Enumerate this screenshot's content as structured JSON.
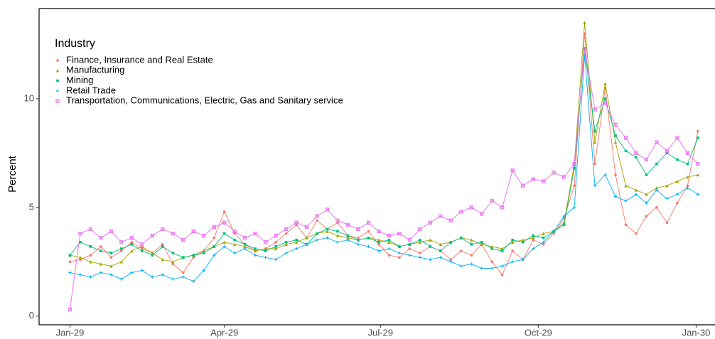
{
  "chart_data": {
    "type": "line",
    "y_label": "Percent",
    "legend_title": "Industry",
    "legend_position": "top-left",
    "x": [
      0,
      6,
      12,
      18,
      24,
      30,
      36,
      42,
      48,
      54,
      60,
      66,
      72,
      78,
      84,
      90,
      96,
      102,
      108,
      114,
      120,
      126,
      132,
      138,
      144,
      150,
      156,
      162,
      168,
      174,
      180,
      186,
      192,
      198,
      204,
      210,
      216,
      222,
      228,
      234,
      240,
      246,
      252,
      258,
      264,
      270,
      276,
      282,
      288,
      294,
      300,
      306,
      312,
      318,
      324,
      330,
      336,
      342,
      348,
      354,
      360,
      366
    ],
    "xlim": [
      -18,
      376
    ],
    "xticks": [
      {
        "value": 0,
        "label": "Jan-29"
      },
      {
        "value": 90,
        "label": "Apr-29"
      },
      {
        "value": 181,
        "label": "Jul-29"
      },
      {
        "value": 273,
        "label": "Oct-29"
      },
      {
        "value": 365,
        "label": "Jan-30"
      }
    ],
    "ylim": [
      -0.4,
      14.15
    ],
    "yticks": [
      0,
      5,
      10
    ],
    "series": [
      {
        "name": "Finance, Insurance and Real Estate",
        "color": "#F8766D",
        "marker": "circle",
        "values": [
          2.5,
          2.6,
          2.8,
          3.2,
          2.7,
          3.0,
          3.4,
          3.1,
          2.9,
          3.3,
          2.4,
          2.0,
          2.7,
          3.0,
          3.6,
          4.8,
          3.8,
          3.3,
          3.0,
          3.1,
          3.4,
          3.8,
          4.2,
          3.6,
          4.4,
          4.0,
          4.3,
          3.7,
          3.6,
          3.9,
          3.3,
          2.8,
          2.7,
          3.1,
          2.9,
          3.2,
          3.0,
          2.6,
          3.0,
          2.8,
          3.3,
          2.5,
          1.9,
          3.0,
          2.6,
          3.5,
          3.3,
          3.8,
          4.5,
          6.0,
          13.0,
          7.0,
          10.5,
          6.5,
          4.2,
          3.8,
          4.6,
          5.0,
          4.3,
          5.2,
          6.0,
          8.5
        ]
      },
      {
        "name": "Manufacturing",
        "color": "#A3A500",
        "marker": "triangle",
        "values": [
          2.8,
          2.7,
          2.5,
          2.4,
          2.3,
          2.5,
          3.0,
          3.2,
          2.9,
          2.6,
          2.5,
          2.7,
          2.8,
          3.0,
          3.2,
          3.4,
          3.3,
          3.2,
          3.0,
          3.1,
          3.1,
          3.3,
          3.4,
          3.6,
          3.8,
          3.9,
          3.7,
          3.6,
          3.5,
          3.6,
          3.5,
          3.4,
          3.2,
          3.3,
          3.4,
          3.5,
          3.3,
          3.4,
          3.6,
          3.5,
          3.3,
          3.2,
          3.1,
          3.4,
          3.5,
          3.6,
          3.8,
          3.9,
          4.3,
          7.0,
          13.5,
          8.0,
          10.7,
          8.0,
          6.0,
          5.8,
          5.6,
          5.9,
          6.0,
          6.2,
          6.4,
          6.5
        ]
      },
      {
        "name": "Mining",
        "color": "#00BF7D",
        "marker": "square",
        "values": [
          2.8,
          3.4,
          3.2,
          3.0,
          2.9,
          3.1,
          3.3,
          3.0,
          2.8,
          3.2,
          2.9,
          2.7,
          2.8,
          2.9,
          3.2,
          3.8,
          3.5,
          3.3,
          3.1,
          3.0,
          3.2,
          3.4,
          3.5,
          3.3,
          3.8,
          4.0,
          3.9,
          3.7,
          3.5,
          3.6,
          3.4,
          3.5,
          3.2,
          3.3,
          3.5,
          3.2,
          3.0,
          3.4,
          3.6,
          3.3,
          3.4,
          3.1,
          3.0,
          3.5,
          3.4,
          3.7,
          3.6,
          3.9,
          4.2,
          6.8,
          12.3,
          8.5,
          10.0,
          8.3,
          7.6,
          7.3,
          6.5,
          7.0,
          7.5,
          7.2,
          7.0,
          8.2
        ]
      },
      {
        "name": "Retail Trade",
        "color": "#00B0F6",
        "marker": "plus",
        "values": [
          2.0,
          1.9,
          1.8,
          2.0,
          1.9,
          1.7,
          2.0,
          2.1,
          1.8,
          1.9,
          1.7,
          1.8,
          1.6,
          2.1,
          2.8,
          3.2,
          2.9,
          3.1,
          2.8,
          2.7,
          2.6,
          2.9,
          3.1,
          3.3,
          3.5,
          3.6,
          3.4,
          3.5,
          3.3,
          3.2,
          3.0,
          3.1,
          2.9,
          2.8,
          2.7,
          2.6,
          2.7,
          2.5,
          2.3,
          2.4,
          2.2,
          2.2,
          2.3,
          2.5,
          2.6,
          3.1,
          3.4,
          3.9,
          4.6,
          5.0,
          12.0,
          6.0,
          6.5,
          5.5,
          5.3,
          5.6,
          5.2,
          5.8,
          5.4,
          5.6,
          5.9,
          5.6
        ]
      },
      {
        "name": "Transportation, Communications, Electric, Gas and Sanitary service",
        "color": "#E76BF3",
        "marker": "boxx",
        "values": [
          0.3,
          3.8,
          4.0,
          3.6,
          3.9,
          3.4,
          3.6,
          3.3,
          3.7,
          4.0,
          3.8,
          3.5,
          3.9,
          3.7,
          4.1,
          4.3,
          3.9,
          3.6,
          3.8,
          3.4,
          3.7,
          4.0,
          4.3,
          4.1,
          4.6,
          4.9,
          4.4,
          4.2,
          4.0,
          4.3,
          3.9,
          3.7,
          3.8,
          3.5,
          4.0,
          4.3,
          4.6,
          4.4,
          4.8,
          5.0,
          4.7,
          5.3,
          5.0,
          6.7,
          6.0,
          6.3,
          6.2,
          6.6,
          6.4,
          7.0,
          12.3,
          9.5,
          9.8,
          8.8,
          8.2,
          7.5,
          7.2,
          8.0,
          7.6,
          8.2,
          7.5,
          7.0
        ]
      }
    ]
  }
}
